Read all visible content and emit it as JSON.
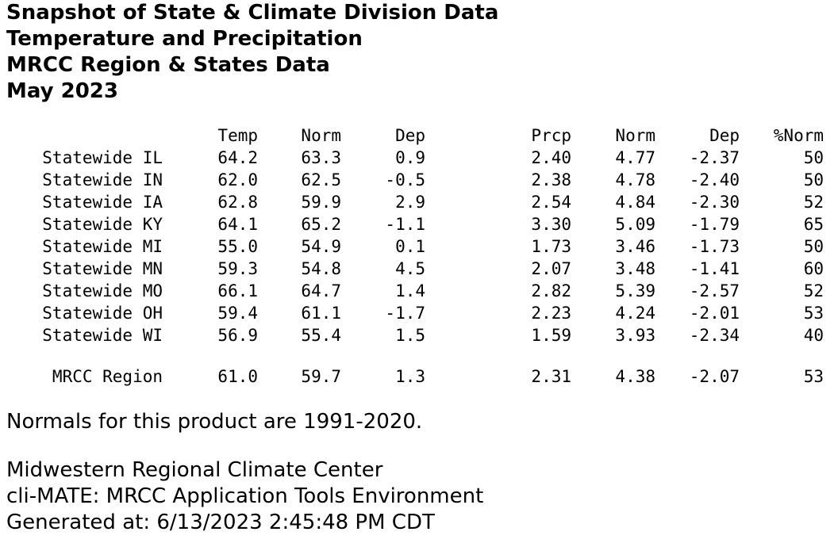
{
  "titles": [
    "Snapshot of State & Climate Division Data",
    "Temperature and Precipitation",
    "MRCC Region & States Data",
    "May 2023"
  ],
  "table": {
    "headers": [
      "",
      "Temp",
      "Norm",
      "Dep",
      "Prcp",
      "Norm",
      "Dep",
      "%Norm"
    ],
    "rows": [
      [
        "Statewide IL",
        "64.2",
        "63.3",
        "0.9",
        "2.40",
        "4.77",
        "-2.37",
        "50"
      ],
      [
        "Statewide IN",
        "62.0",
        "62.5",
        "-0.5",
        "2.38",
        "4.78",
        "-2.40",
        "50"
      ],
      [
        "Statewide IA",
        "62.8",
        "59.9",
        "2.9",
        "2.54",
        "4.84",
        "-2.30",
        "52"
      ],
      [
        "Statewide KY",
        "64.1",
        "65.2",
        "-1.1",
        "3.30",
        "5.09",
        "-1.79",
        "65"
      ],
      [
        "Statewide MI",
        "55.0",
        "54.9",
        "0.1",
        "1.73",
        "3.46",
        "-1.73",
        "50"
      ],
      [
        "Statewide MN",
        "59.3",
        "54.8",
        "4.5",
        "2.07",
        "3.48",
        "-1.41",
        "60"
      ],
      [
        "Statewide MO",
        "66.1",
        "64.7",
        "1.4",
        "2.82",
        "5.39",
        "-2.57",
        "52"
      ],
      [
        "Statewide OH",
        "59.4",
        "61.1",
        "-1.7",
        "2.23",
        "4.24",
        "-2.01",
        "53"
      ],
      [
        "Statewide WI",
        "56.9",
        "55.4",
        "1.5",
        "1.59",
        "3.93",
        "-2.34",
        "40"
      ]
    ],
    "region_row": [
      "MRCC Region",
      "61.0",
      "59.7",
      "1.3",
      "2.31",
      "4.38",
      "-2.07",
      "53"
    ]
  },
  "normals_note": "Normals for this product are 1991-2020.",
  "footer": [
    "Midwestern Regional Climate Center",
    "cli-MATE: MRCC Application Tools Environment",
    "Generated at: 6/13/2023 2:45:48 PM CDT"
  ]
}
